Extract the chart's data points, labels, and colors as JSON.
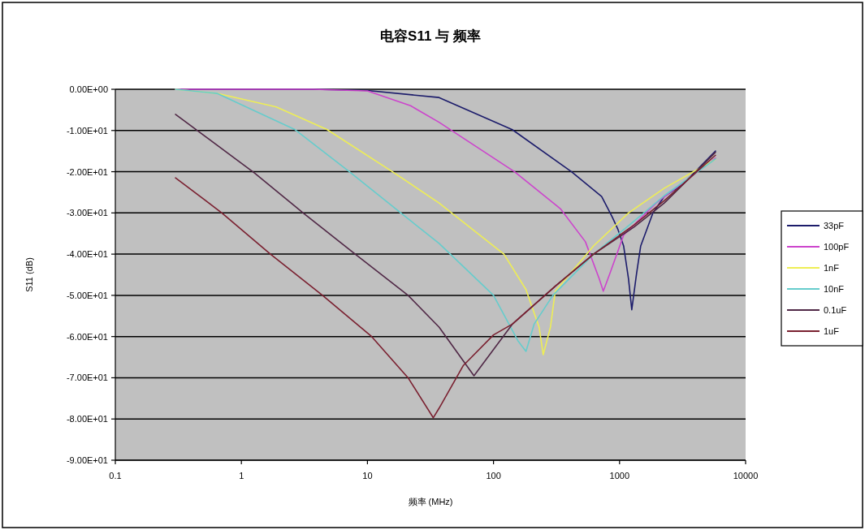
{
  "chart_data": {
    "type": "line",
    "title": "电容S11 与 频率",
    "xlabel": "频率 (MHz)",
    "ylabel": "S11 (dB)",
    "log": "x",
    "grid": "y",
    "legend": "right",
    "xlim": [
      0.1,
      10000
    ],
    "ylim": [
      -90,
      0
    ],
    "xticks": [
      0.1,
      1,
      10,
      100,
      1000,
      10000
    ],
    "yticks": [
      {
        "value": 0,
        "label": "0.00E+00"
      },
      {
        "value": -10,
        "label": "-1.00E+01"
      },
      {
        "value": -20,
        "label": "-2.00E+01"
      },
      {
        "value": -30,
        "label": "-3.00E+01"
      },
      {
        "value": -40,
        "label": "-4.00E+01"
      },
      {
        "value": -50,
        "label": "-5.00E+01"
      },
      {
        "value": -60,
        "label": "-6.00E+01"
      },
      {
        "value": -70,
        "label": "-7.00E+01"
      },
      {
        "value": -80,
        "label": "-8.00E+01"
      },
      {
        "value": -90,
        "label": "-9.00E+01"
      }
    ],
    "series": [
      {
        "name": "33pF",
        "color": "#1c1c6b",
        "x": [
          0.3,
          3.7,
          10,
          37,
          141,
          416,
          721,
          875,
          971,
          1077,
          1178,
          1250,
          1365,
          1472,
          1841,
          2265,
          3186,
          5770
        ],
        "values": [
          0,
          0,
          -0.3,
          -2,
          -9.8,
          -20,
          -26,
          -31,
          -34,
          -38,
          -46,
          -53.5,
          -44.7,
          -38,
          -30,
          -26,
          -23,
          -15
        ]
      },
      {
        "name": "100pF",
        "color": "#cc44cc",
        "x": [
          0.3,
          3.7,
          10,
          22,
          37,
          147,
          340,
          536,
          690,
          743,
          838,
          1077,
          1950,
          5770
        ],
        "values": [
          0,
          0,
          -0.4,
          -4,
          -8,
          -20,
          -29,
          -37,
          -46,
          -49,
          -44.7,
          -35.4,
          -27.6,
          -16.7
        ]
      },
      {
        "name": "1nF",
        "color": "#eeee55",
        "x": [
          0.3,
          0.64,
          1.89,
          4.8,
          15.8,
          37,
          121,
          181,
          230,
          248,
          283,
          309,
          622,
          1178,
          2265,
          5770
        ],
        "values": [
          0,
          -1,
          -4.3,
          -9.8,
          -20,
          -27.6,
          -40,
          -48.6,
          -57.7,
          -64.4,
          -57.7,
          -49,
          -38,
          -30,
          -24,
          -17
        ]
      },
      {
        "name": "10nF",
        "color": "#66cccc",
        "x": [
          0.3,
          0.64,
          2.67,
          7.2,
          18.4,
          37,
          100,
          156,
          181,
          210,
          296,
          622,
          1306,
          2265,
          5770
        ],
        "values": [
          0,
          -1,
          -9.8,
          -20,
          -30,
          -37.4,
          -50,
          -61,
          -63.6,
          -57,
          -50,
          -40,
          -32,
          -25.8,
          -16.9
        ]
      },
      {
        "name": "0.1uF",
        "color": "#502846",
        "x": [
          0.3,
          1.27,
          3.09,
          8,
          21,
          37,
          70,
          141,
          309,
          622,
          1306,
          2265,
          5770
        ],
        "values": [
          -6.1,
          -20.3,
          -30,
          -40,
          -50,
          -57.7,
          -69.5,
          -57,
          -47.8,
          -40,
          -33.4,
          -27.6,
          -15.3
        ]
      },
      {
        "name": "1uF",
        "color": "#7a2030",
        "x": [
          0.3,
          0.7,
          1.7,
          4.4,
          10.8,
          21,
          33.3,
          37,
          57.7,
          100,
          141,
          309,
          622,
          1306,
          2265,
          5770
        ],
        "values": [
          -21.5,
          -30,
          -40,
          -50,
          -60,
          -70,
          -79.7,
          -77.4,
          -67,
          -59.6,
          -57,
          -47.8,
          -40,
          -32.9,
          -27,
          -16
        ]
      }
    ]
  }
}
